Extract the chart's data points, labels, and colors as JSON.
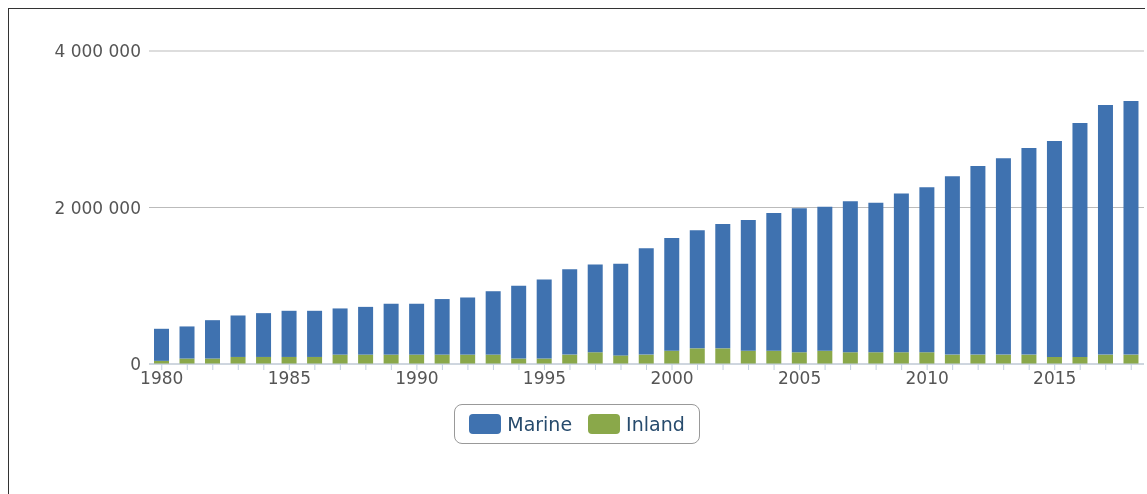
{
  "chart_data": {
    "type": "bar",
    "stacked": true,
    "categories": [
      "1980",
      null,
      null,
      null,
      null,
      "1985",
      null,
      null,
      null,
      null,
      "1990",
      null,
      null,
      null,
      null,
      "1995",
      null,
      null,
      null,
      null,
      "2000",
      null,
      null,
      null,
      null,
      "2005",
      null,
      null,
      null,
      null,
      "2010",
      null,
      null,
      null,
      null,
      "2015",
      null,
      null,
      null
    ],
    "series": [
      {
        "name": "Inland",
        "color": "#8aa84a",
        "values": [
          40000,
          70000,
          70000,
          90000,
          90000,
          90000,
          90000,
          120000,
          120000,
          120000,
          120000,
          120000,
          120000,
          120000,
          70000,
          70000,
          120000,
          150000,
          110000,
          120000,
          170000,
          200000,
          200000,
          170000,
          170000,
          150000,
          170000,
          150000,
          150000,
          150000,
          150000,
          120000,
          120000,
          120000,
          120000,
          90000,
          90000,
          120000,
          120000
        ]
      },
      {
        "name": "Marine",
        "color": "#3f72b0",
        "values": [
          410000,
          410000,
          490000,
          530000,
          560000,
          590000,
          590000,
          590000,
          610000,
          650000,
          650000,
          710000,
          730000,
          810000,
          930000,
          1010000,
          1090000,
          1120000,
          1170000,
          1360000,
          1440000,
          1510000,
          1590000,
          1670000,
          1760000,
          1840000,
          1840000,
          1930000,
          1910000,
          2030000,
          2110000,
          2280000,
          2410000,
          2510000,
          2640000,
          2760000,
          2990000,
          3190000,
          3240000
        ]
      }
    ],
    "ylim": [
      0,
      4000000
    ],
    "yticks": [
      {
        "value": 0,
        "label": "0"
      },
      {
        "value": 2000000,
        "label": "2 000 000"
      },
      {
        "value": 4000000,
        "label": "4 000 000"
      }
    ],
    "grid": "y",
    "legend": "bottom"
  }
}
